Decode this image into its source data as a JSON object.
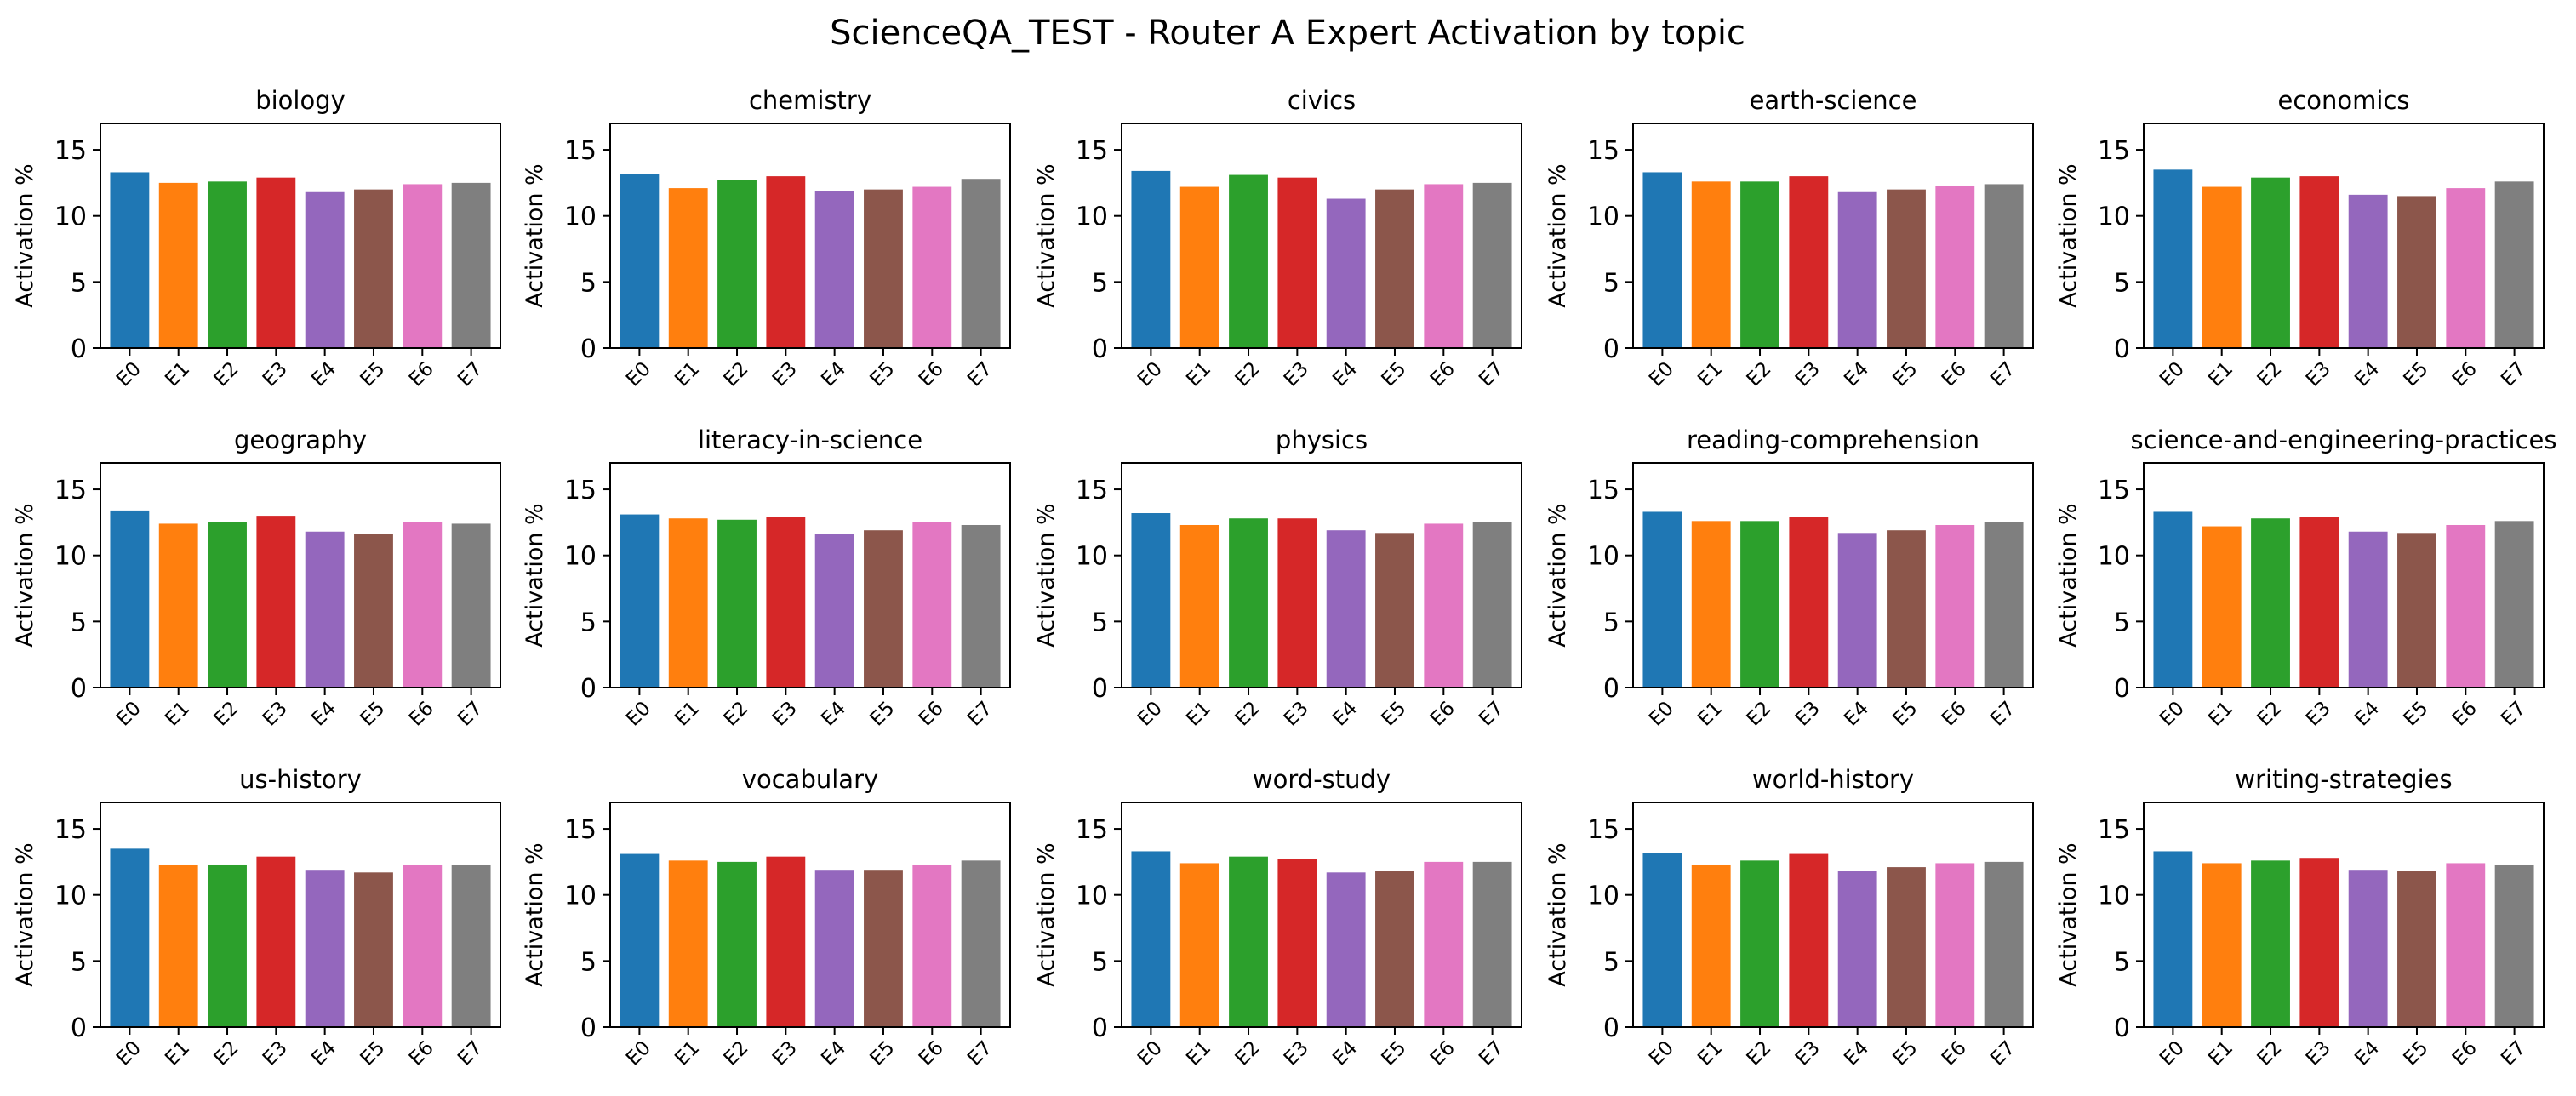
{
  "figure": {
    "title": "ScienceQA_TEST - Router A Expert Activation by topic"
  },
  "colors": [
    "#1f77b4",
    "#ff7f0e",
    "#2ca02c",
    "#d62728",
    "#9467bd",
    "#8c564b",
    "#e377c2",
    "#7f7f7f"
  ],
  "chart_data": [
    {
      "type": "bar",
      "title": "biology",
      "xlabel": "",
      "ylabel": "Activation %",
      "categories": [
        "E0",
        "E1",
        "E2",
        "E3",
        "E4",
        "E5",
        "E6",
        "E7"
      ],
      "values": [
        13.3,
        12.5,
        12.6,
        12.9,
        11.8,
        12.0,
        12.4,
        12.5
      ],
      "ylim": [
        0,
        17
      ],
      "yticks": [
        0,
        5,
        10,
        15
      ],
      "grid": false
    },
    {
      "type": "bar",
      "title": "chemistry",
      "xlabel": "",
      "ylabel": "Activation %",
      "categories": [
        "E0",
        "E1",
        "E2",
        "E3",
        "E4",
        "E5",
        "E6",
        "E7"
      ],
      "values": [
        13.2,
        12.1,
        12.7,
        13.0,
        11.9,
        12.0,
        12.2,
        12.8
      ],
      "ylim": [
        0,
        17
      ],
      "yticks": [
        0,
        5,
        10,
        15
      ],
      "grid": false
    },
    {
      "type": "bar",
      "title": "civics",
      "xlabel": "",
      "ylabel": "Activation %",
      "categories": [
        "E0",
        "E1",
        "E2",
        "E3",
        "E4",
        "E5",
        "E6",
        "E7"
      ],
      "values": [
        13.4,
        12.2,
        13.1,
        12.9,
        11.3,
        12.0,
        12.4,
        12.5
      ],
      "ylim": [
        0,
        17
      ],
      "yticks": [
        0,
        5,
        10,
        15
      ],
      "grid": false
    },
    {
      "type": "bar",
      "title": "earth-science",
      "xlabel": "",
      "ylabel": "Activation %",
      "categories": [
        "E0",
        "E1",
        "E2",
        "E3",
        "E4",
        "E5",
        "E6",
        "E7"
      ],
      "values": [
        13.3,
        12.6,
        12.6,
        13.0,
        11.8,
        12.0,
        12.3,
        12.4
      ],
      "ylim": [
        0,
        17
      ],
      "yticks": [
        0,
        5,
        10,
        15
      ],
      "grid": false
    },
    {
      "type": "bar",
      "title": "economics",
      "xlabel": "",
      "ylabel": "Activation %",
      "categories": [
        "E0",
        "E1",
        "E2",
        "E3",
        "E4",
        "E5",
        "E6",
        "E7"
      ],
      "values": [
        13.5,
        12.2,
        12.9,
        13.0,
        11.6,
        11.5,
        12.1,
        12.6
      ],
      "ylim": [
        0,
        17
      ],
      "yticks": [
        0,
        5,
        10,
        15
      ],
      "grid": false
    },
    {
      "type": "bar",
      "title": "geography",
      "xlabel": "",
      "ylabel": "Activation %",
      "categories": [
        "E0",
        "E1",
        "E2",
        "E3",
        "E4",
        "E5",
        "E6",
        "E7"
      ],
      "values": [
        13.4,
        12.4,
        12.5,
        13.0,
        11.8,
        11.6,
        12.5,
        12.4
      ],
      "ylim": [
        0,
        17
      ],
      "yticks": [
        0,
        5,
        10,
        15
      ],
      "grid": false
    },
    {
      "type": "bar",
      "title": "literacy-in-science",
      "xlabel": "",
      "ylabel": "Activation %",
      "categories": [
        "E0",
        "E1",
        "E2",
        "E3",
        "E4",
        "E5",
        "E6",
        "E7"
      ],
      "values": [
        13.1,
        12.8,
        12.7,
        12.9,
        11.6,
        11.9,
        12.5,
        12.3
      ],
      "ylim": [
        0,
        17
      ],
      "yticks": [
        0,
        5,
        10,
        15
      ],
      "grid": false
    },
    {
      "type": "bar",
      "title": "physics",
      "xlabel": "",
      "ylabel": "Activation %",
      "categories": [
        "E0",
        "E1",
        "E2",
        "E3",
        "E4",
        "E5",
        "E6",
        "E7"
      ],
      "values": [
        13.2,
        12.3,
        12.8,
        12.8,
        11.9,
        11.7,
        12.4,
        12.5
      ],
      "ylim": [
        0,
        17
      ],
      "yticks": [
        0,
        5,
        10,
        15
      ],
      "grid": false
    },
    {
      "type": "bar",
      "title": "reading-comprehension",
      "xlabel": "",
      "ylabel": "Activation %",
      "categories": [
        "E0",
        "E1",
        "E2",
        "E3",
        "E4",
        "E5",
        "E6",
        "E7"
      ],
      "values": [
        13.3,
        12.6,
        12.6,
        12.9,
        11.7,
        11.9,
        12.3,
        12.5
      ],
      "ylim": [
        0,
        17
      ],
      "yticks": [
        0,
        5,
        10,
        15
      ],
      "grid": false
    },
    {
      "type": "bar",
      "title": "science-and-engineering-practices",
      "xlabel": "",
      "ylabel": "Activation %",
      "categories": [
        "E0",
        "E1",
        "E2",
        "E3",
        "E4",
        "E5",
        "E6",
        "E7"
      ],
      "values": [
        13.3,
        12.2,
        12.8,
        12.9,
        11.8,
        11.7,
        12.3,
        12.6
      ],
      "ylim": [
        0,
        17
      ],
      "yticks": [
        0,
        5,
        10,
        15
      ],
      "grid": false
    },
    {
      "type": "bar",
      "title": "us-history",
      "xlabel": "",
      "ylabel": "Activation %",
      "categories": [
        "E0",
        "E1",
        "E2",
        "E3",
        "E4",
        "E5",
        "E6",
        "E7"
      ],
      "values": [
        13.5,
        12.3,
        12.3,
        12.9,
        11.9,
        11.7,
        12.3,
        12.3
      ],
      "ylim": [
        0,
        17
      ],
      "yticks": [
        0,
        5,
        10,
        15
      ],
      "grid": false
    },
    {
      "type": "bar",
      "title": "vocabulary",
      "xlabel": "",
      "ylabel": "Activation %",
      "categories": [
        "E0",
        "E1",
        "E2",
        "E3",
        "E4",
        "E5",
        "E6",
        "E7"
      ],
      "values": [
        13.1,
        12.6,
        12.5,
        12.9,
        11.9,
        11.9,
        12.3,
        12.6
      ],
      "ylim": [
        0,
        17
      ],
      "yticks": [
        0,
        5,
        10,
        15
      ],
      "grid": false
    },
    {
      "type": "bar",
      "title": "word-study",
      "xlabel": "",
      "ylabel": "Activation %",
      "categories": [
        "E0",
        "E1",
        "E2",
        "E3",
        "E4",
        "E5",
        "E6",
        "E7"
      ],
      "values": [
        13.3,
        12.4,
        12.9,
        12.7,
        11.7,
        11.8,
        12.5,
        12.5
      ],
      "ylim": [
        0,
        17
      ],
      "yticks": [
        0,
        5,
        10,
        15
      ],
      "grid": false
    },
    {
      "type": "bar",
      "title": "world-history",
      "xlabel": "",
      "ylabel": "Activation %",
      "categories": [
        "E0",
        "E1",
        "E2",
        "E3",
        "E4",
        "E5",
        "E6",
        "E7"
      ],
      "values": [
        13.2,
        12.3,
        12.6,
        13.1,
        11.8,
        12.1,
        12.4,
        12.5
      ],
      "ylim": [
        0,
        17
      ],
      "yticks": [
        0,
        5,
        10,
        15
      ],
      "grid": false
    },
    {
      "type": "bar",
      "title": "writing-strategies",
      "xlabel": "",
      "ylabel": "Activation %",
      "categories": [
        "E0",
        "E1",
        "E2",
        "E3",
        "E4",
        "E5",
        "E6",
        "E7"
      ],
      "values": [
        13.3,
        12.4,
        12.6,
        12.8,
        11.9,
        11.8,
        12.4,
        12.3
      ],
      "ylim": [
        0,
        17
      ],
      "yticks": [
        0,
        5,
        10,
        15
      ],
      "grid": false
    }
  ]
}
